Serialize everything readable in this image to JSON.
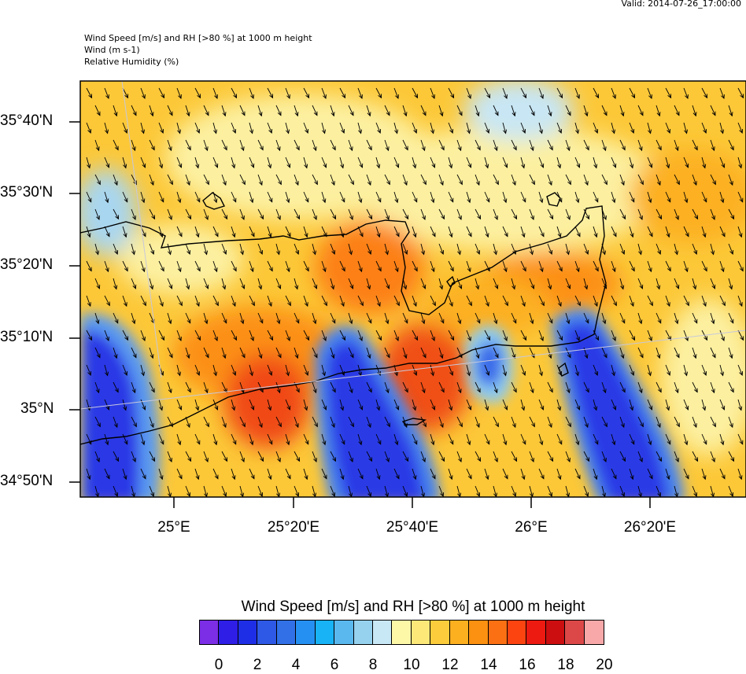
{
  "header": {
    "valid": "Valid: 2014-07-26_17:00:00",
    "title_line1": "Wind Speed [m/s] and RH [>80 %] at 1000 m height",
    "title_line2": "Wind   (m s-1)",
    "title_line3": "Relative Humidity   (%)"
  },
  "axes": {
    "y_labels": [
      "35°40'N",
      "35°30'N",
      "35°20'N",
      "35°10'N",
      "35°N",
      "34°50'N"
    ],
    "x_labels": [
      "25°E",
      "25°20'E",
      "25°40'E",
      "26°E",
      "26°20'E"
    ]
  },
  "legend": {
    "title": "Wind Speed [m/s] and RH [>80 %] at 1000 m height",
    "colors": [
      "#7b2ee6",
      "#2e1ee6",
      "#1e2ee6",
      "#2e58e6",
      "#3270e8",
      "#2690f2",
      "#18b2f6",
      "#5ab8ee",
      "#96d2ee",
      "#c8e8f6",
      "#fcf8a8",
      "#fce878",
      "#fccc3c",
      "#fcb020",
      "#fc9010",
      "#fc7014",
      "#fc4410",
      "#ec1a10",
      "#cc0e10",
      "#dc4848",
      "#f8a8a8"
    ],
    "ticks": [
      "0",
      "2",
      "4",
      "6",
      "8",
      "10",
      "12",
      "14",
      "16",
      "18",
      "20"
    ]
  },
  "colors": {
    "coast": "#000000",
    "arrow": "#000000",
    "grid": "#c8c8dc"
  }
}
